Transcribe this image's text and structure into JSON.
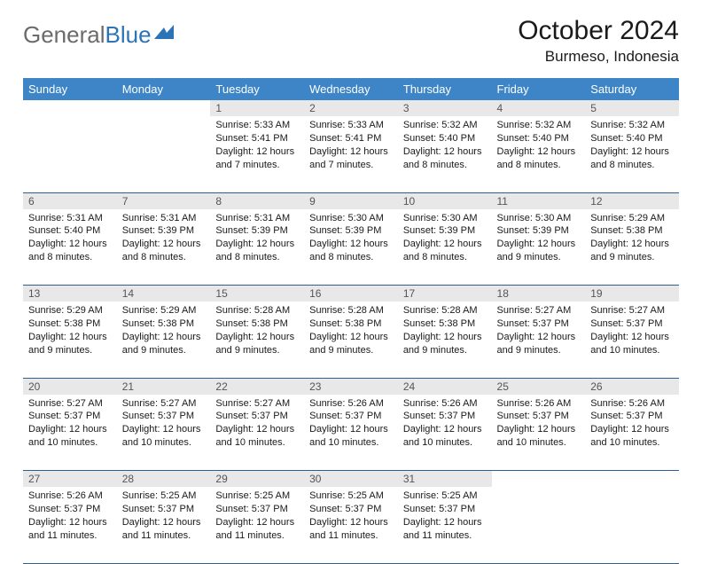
{
  "brand": {
    "part1": "General",
    "part2": "Blue"
  },
  "header": {
    "month": "October 2024",
    "location": "Burmeso, Indonesia"
  },
  "colors": {
    "header_bg": "#3d85c6",
    "header_text": "#ffffff",
    "daynum_bg": "#e8e8e8",
    "daynum_text": "#555555",
    "rule": "#2d5f8f",
    "body_text": "#1a1a1a",
    "brand_gray": "#6b6b6b",
    "brand_blue": "#2d73b8"
  },
  "weekdays": [
    "Sunday",
    "Monday",
    "Tuesday",
    "Wednesday",
    "Thursday",
    "Friday",
    "Saturday"
  ],
  "weeks": [
    [
      null,
      null,
      {
        "n": "1",
        "sunrise": "5:33 AM",
        "sunset": "5:41 PM",
        "daylight": "12 hours and 7 minutes."
      },
      {
        "n": "2",
        "sunrise": "5:33 AM",
        "sunset": "5:41 PM",
        "daylight": "12 hours and 7 minutes."
      },
      {
        "n": "3",
        "sunrise": "5:32 AM",
        "sunset": "5:40 PM",
        "daylight": "12 hours and 8 minutes."
      },
      {
        "n": "4",
        "sunrise": "5:32 AM",
        "sunset": "5:40 PM",
        "daylight": "12 hours and 8 minutes."
      },
      {
        "n": "5",
        "sunrise": "5:32 AM",
        "sunset": "5:40 PM",
        "daylight": "12 hours and 8 minutes."
      }
    ],
    [
      {
        "n": "6",
        "sunrise": "5:31 AM",
        "sunset": "5:40 PM",
        "daylight": "12 hours and 8 minutes."
      },
      {
        "n": "7",
        "sunrise": "5:31 AM",
        "sunset": "5:39 PM",
        "daylight": "12 hours and 8 minutes."
      },
      {
        "n": "8",
        "sunrise": "5:31 AM",
        "sunset": "5:39 PM",
        "daylight": "12 hours and 8 minutes."
      },
      {
        "n": "9",
        "sunrise": "5:30 AM",
        "sunset": "5:39 PM",
        "daylight": "12 hours and 8 minutes."
      },
      {
        "n": "10",
        "sunrise": "5:30 AM",
        "sunset": "5:39 PM",
        "daylight": "12 hours and 8 minutes."
      },
      {
        "n": "11",
        "sunrise": "5:30 AM",
        "sunset": "5:39 PM",
        "daylight": "12 hours and 9 minutes."
      },
      {
        "n": "12",
        "sunrise": "5:29 AM",
        "sunset": "5:38 PM",
        "daylight": "12 hours and 9 minutes."
      }
    ],
    [
      {
        "n": "13",
        "sunrise": "5:29 AM",
        "sunset": "5:38 PM",
        "daylight": "12 hours and 9 minutes."
      },
      {
        "n": "14",
        "sunrise": "5:29 AM",
        "sunset": "5:38 PM",
        "daylight": "12 hours and 9 minutes."
      },
      {
        "n": "15",
        "sunrise": "5:28 AM",
        "sunset": "5:38 PM",
        "daylight": "12 hours and 9 minutes."
      },
      {
        "n": "16",
        "sunrise": "5:28 AM",
        "sunset": "5:38 PM",
        "daylight": "12 hours and 9 minutes."
      },
      {
        "n": "17",
        "sunrise": "5:28 AM",
        "sunset": "5:38 PM",
        "daylight": "12 hours and 9 minutes."
      },
      {
        "n": "18",
        "sunrise": "5:27 AM",
        "sunset": "5:37 PM",
        "daylight": "12 hours and 9 minutes."
      },
      {
        "n": "19",
        "sunrise": "5:27 AM",
        "sunset": "5:37 PM",
        "daylight": "12 hours and 10 minutes."
      }
    ],
    [
      {
        "n": "20",
        "sunrise": "5:27 AM",
        "sunset": "5:37 PM",
        "daylight": "12 hours and 10 minutes."
      },
      {
        "n": "21",
        "sunrise": "5:27 AM",
        "sunset": "5:37 PM",
        "daylight": "12 hours and 10 minutes."
      },
      {
        "n": "22",
        "sunrise": "5:27 AM",
        "sunset": "5:37 PM",
        "daylight": "12 hours and 10 minutes."
      },
      {
        "n": "23",
        "sunrise": "5:26 AM",
        "sunset": "5:37 PM",
        "daylight": "12 hours and 10 minutes."
      },
      {
        "n": "24",
        "sunrise": "5:26 AM",
        "sunset": "5:37 PM",
        "daylight": "12 hours and 10 minutes."
      },
      {
        "n": "25",
        "sunrise": "5:26 AM",
        "sunset": "5:37 PM",
        "daylight": "12 hours and 10 minutes."
      },
      {
        "n": "26",
        "sunrise": "5:26 AM",
        "sunset": "5:37 PM",
        "daylight": "12 hours and 10 minutes."
      }
    ],
    [
      {
        "n": "27",
        "sunrise": "5:26 AM",
        "sunset": "5:37 PM",
        "daylight": "12 hours and 11 minutes."
      },
      {
        "n": "28",
        "sunrise": "5:25 AM",
        "sunset": "5:37 PM",
        "daylight": "12 hours and 11 minutes."
      },
      {
        "n": "29",
        "sunrise": "5:25 AM",
        "sunset": "5:37 PM",
        "daylight": "12 hours and 11 minutes."
      },
      {
        "n": "30",
        "sunrise": "5:25 AM",
        "sunset": "5:37 PM",
        "daylight": "12 hours and 11 minutes."
      },
      {
        "n": "31",
        "sunrise": "5:25 AM",
        "sunset": "5:37 PM",
        "daylight": "12 hours and 11 minutes."
      },
      null,
      null
    ]
  ]
}
